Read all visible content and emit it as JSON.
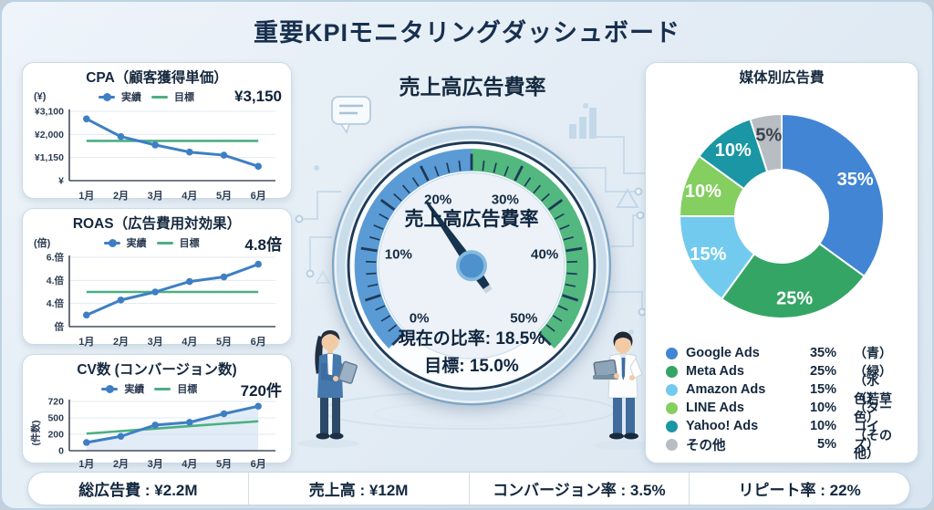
{
  "page_title": "重要KPIモニタリングダッシュボード",
  "chart_data": [
    {
      "id": "cpa",
      "type": "line",
      "title": "CPA（顧客獲得単価）",
      "ylabel": "(¥)",
      "big_value": "¥3,150",
      "categories": [
        "1月",
        "2月",
        "3月",
        "4月",
        "5月",
        "6月"
      ],
      "yticks": [
        "¥3,100",
        "¥2,000",
        "¥1,150",
        "¥"
      ],
      "ylim": [
        0,
        3400
      ],
      "series": [
        {
          "name": "実績",
          "color": "#3e7fc4",
          "values": [
            3030,
            2160,
            1750,
            1400,
            1250,
            700
          ]
        },
        {
          "name": "目標",
          "color": "#4caf82",
          "values": [
            1950,
            1950,
            1950,
            1950,
            1950,
            1950
          ]
        }
      ],
      "grid": true,
      "legend_position": "top"
    },
    {
      "id": "roas",
      "type": "line",
      "title": "ROAS（広告費用対効果）",
      "ylabel": "(倍)",
      "big_value": "4.8倍",
      "categories": [
        "1月",
        "2月",
        "3月",
        "4月",
        "5月",
        "6月"
      ],
      "yticks": [
        "6.倍",
        "4.倍",
        "4.倍",
        "倍"
      ],
      "ylim": [
        0,
        6
      ],
      "series": [
        {
          "name": "実績",
          "color": "#3e7fc4",
          "values": [
            1.0,
            2.3,
            3.0,
            3.9,
            4.3,
            5.4
          ]
        },
        {
          "name": "目標",
          "color": "#4caf82",
          "values": [
            3.0,
            3.0,
            3.0,
            3.0,
            3.0,
            3.0
          ]
        }
      ],
      "grid": true,
      "legend_position": "top"
    },
    {
      "id": "cv",
      "type": "area",
      "title": "CV数 (コンバージョン数)",
      "ylabel": "(件数)",
      "big_value": "720件",
      "categories": [
        "1月",
        "2月",
        "3月",
        "4月",
        "5月",
        "6月"
      ],
      "yticks": [
        "720",
        "500",
        "200",
        "0"
      ],
      "ylim": [
        0,
        720
      ],
      "series": [
        {
          "name": "実績",
          "color": "#3e7fc4",
          "values": [
            120,
            210,
            375,
            415,
            540,
            650
          ]
        },
        {
          "name": "目標",
          "color": "#4caf82",
          "values": [
            250,
            286,
            322,
            359,
            395,
            430
          ]
        }
      ],
      "area_fill": "#cfe0f2",
      "grid": true,
      "legend_position": "top"
    },
    {
      "id": "gauge",
      "type": "gauge",
      "title": "売上高広告費率",
      "center_label": "売上高広告費率",
      "min": 0,
      "max": 50,
      "value": 18.5,
      "target": 15.0,
      "current_text": "現在の比率: 18.5%",
      "target_text": "目標: 15.0%",
      "tick_labels": [
        "0%",
        "10%",
        "20%",
        "30%",
        "40%",
        "50%"
      ],
      "segments": [
        {
          "from": 0,
          "to": 25,
          "color": "#5b9bd5"
        },
        {
          "from": 25,
          "to": 50,
          "color": "#52b87f"
        }
      ],
      "needle_color": "#16334f",
      "hub_color": "#4d92cc"
    },
    {
      "id": "donut",
      "type": "donut",
      "title": "媒体別広告費",
      "slices": [
        {
          "label": "Google Ads",
          "pct": 35,
          "pct_label": "35%",
          "color": "#4285d4",
          "color_name": "（青）",
          "label_color": "#ffffff"
        },
        {
          "label": "Meta Ads",
          "pct": 25,
          "pct_label": "25%",
          "color": "#35a565",
          "color_name": "（緑）",
          "label_color": "#ffffff"
        },
        {
          "label": "Amazon Ads",
          "pct": 15,
          "pct_label": "15%",
          "color": "#72cbee",
          "color_name": "（水色）",
          "label_color": "#ffffff"
        },
        {
          "label": "LINE Ads",
          "pct": 10,
          "pct_label": "10%",
          "color": "#84cf60",
          "color_name": "（若草色）",
          "label_color": "#ffffff"
        },
        {
          "label": "Yahoo! Ads",
          "pct": 10,
          "pct_label": "10%",
          "color": "#1a96a4",
          "color_name": "（ターコイズ）",
          "label_color": "#ffffff"
        },
        {
          "label": "その他",
          "pct": 5,
          "pct_label": "5%",
          "color": "#b8bdc3",
          "color_name": "（その他）",
          "label_color": "#3a4450"
        }
      ],
      "legend_position": "bottom"
    }
  ],
  "footer": {
    "separator": " : ",
    "items": [
      {
        "label": "総広告費",
        "value": "¥2.2M"
      },
      {
        "label": "売上高",
        "value": "¥12M"
      },
      {
        "label": "コンバージョン率",
        "value": "3.5%"
      },
      {
        "label": "リピート率",
        "value": "22%"
      }
    ]
  }
}
